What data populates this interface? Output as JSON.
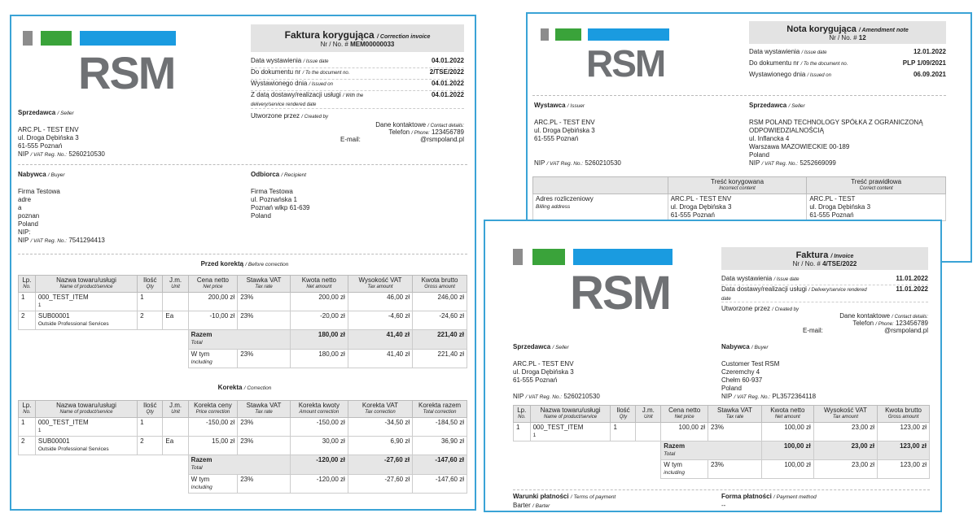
{
  "colors": {
    "gray_bar": "#8c8c8c",
    "green_bar": "#3aa33a",
    "blue_bar": "#1a9be0",
    "frame": "#3aa3d6",
    "logo": "#6f7174"
  },
  "logo": "RSM",
  "doc1": {
    "title": "Faktura korygująca",
    "title_en": "/ Correction invoice",
    "nr_label": "Nr / No. #",
    "nr": "MEM00000033",
    "meta": [
      {
        "label": "Data wystawienia",
        "label_en": "/ Issue date",
        "value": "04.01.2022"
      },
      {
        "label": "Do dokumentu nr",
        "label_en": "/ To the document no.",
        "value": "2/TSE/2022"
      },
      {
        "label": "Wystawionego dnia",
        "label_en": "/ Issued on",
        "value": "04.01.2022"
      },
      {
        "label": "Z datą dostawy/realizacji usługi",
        "label_en": "/ With the delivery/service rendered date",
        "value": "04.01.2022"
      }
    ],
    "created_by": "Utworzone przez",
    "created_by_en": "/ Created by",
    "contact_label": "Dane kontaktowe",
    "contact_label_en": "/ Contact details:",
    "phone_label": "Telefon",
    "phone_label_en": "/ Phone:",
    "phone": "123456789",
    "email_label": "E-mail:",
    "email": "@rsmpoland.pl",
    "seller_label": "Sprzedawca",
    "seller_label_en": "/ Seller",
    "seller": [
      "ARC.PL - TEST ENV",
      "ul. Droga Dębińska 3",
      "61-555 Poznań"
    ],
    "seller_nip_label": "NIP",
    "seller_nip_label_en": "/ VAT Reg. No.:",
    "seller_nip": "5260210530",
    "buyer_label": "Nabywca",
    "buyer_label_en": "/ Buyer",
    "buyer": [
      "Firma Testowa",
      "adre",
      "a",
      "poznan",
      "Poland",
      "NIP:"
    ],
    "buyer_nip_label": "NIP",
    "buyer_nip_label_en": "/ VAT Reg. No.:",
    "buyer_nip": "7541294413",
    "recipient_label": "Odbiorca",
    "recipient_label_en": "/ Recipient",
    "recipient": [
      "Firma Testowa",
      "ul. Poznańska 1",
      "Poznań wlkp 61-639",
      "Poland"
    ],
    "before_label": "Przed korektą",
    "before_label_en": "/ Before correction",
    "before_headers": [
      [
        "Lp.",
        "No."
      ],
      [
        "Nazwa towaru/usługi",
        "Name of product/service"
      ],
      [
        "Ilość",
        "Qty"
      ],
      [
        "J.m.",
        "Unit"
      ],
      [
        "Cena netto",
        "Net price"
      ],
      [
        "Stawka VAT",
        "Tax rate"
      ],
      [
        "Kwota netto",
        "Net amount"
      ],
      [
        "Wysokość VAT",
        "Tax amount"
      ],
      [
        "Kwota brutto",
        "Gross amount"
      ]
    ],
    "before_rows": [
      [
        "1",
        "000_TEST_ITEM",
        "1",
        "1",
        "",
        "200,00 zł",
        "23%",
        "200,00 zł",
        "46,00 zł",
        "246,00 zł"
      ],
      [
        "2",
        "SUB00001",
        "Outside Professional Services",
        "2",
        "Ea",
        "-10,00 zł",
        "23%",
        "-20,00 zł",
        "-4,60 zł",
        "-24,60 zł"
      ]
    ],
    "before_total": {
      "label": "Razem",
      "label_en": "Total",
      "net": "180,00 zł",
      "tax": "41,40 zł",
      "gross": "221,40 zł"
    },
    "before_incl": {
      "label": "W tym",
      "label_en": "Including",
      "rate": "23%",
      "net": "180,00 zł",
      "tax": "41,40 zł",
      "gross": "221,40 zł"
    },
    "corr_label": "Korekta",
    "corr_label_en": "/ Correction",
    "corr_headers": [
      [
        "Lp.",
        "No."
      ],
      [
        "Nazwa towaru/usługi",
        "Name of product/service"
      ],
      [
        "Ilość",
        "Qty"
      ],
      [
        "J.m.",
        "Unit"
      ],
      [
        "Korekta ceny",
        "Price correction"
      ],
      [
        "Stawka VAT",
        "Tax rate"
      ],
      [
        "Korekta kwoty",
        "Amount correction"
      ],
      [
        "Korekta VAT",
        "Tax correction"
      ],
      [
        "Korekta razem",
        "Total correction"
      ]
    ],
    "corr_rows": [
      [
        "1",
        "000_TEST_ITEM",
        "1",
        "1",
        "",
        "-150,00 zł",
        "23%",
        "-150,00 zł",
        "-34,50 zł",
        "-184,50 zł"
      ],
      [
        "2",
        "SUB00001",
        "Outside Professional Services",
        "2",
        "Ea",
        "15,00 zł",
        "23%",
        "30,00 zł",
        "6,90 zł",
        "36,90 zł"
      ]
    ],
    "corr_total": {
      "label": "Razem",
      "label_en": "Total",
      "net": "-120,00 zł",
      "tax": "-27,60 zł",
      "gross": "-147,60 zł"
    },
    "corr_incl": {
      "label": "W tym",
      "label_en": "Including",
      "rate": "23%",
      "net": "-120,00 zł",
      "tax": "-27,60 zł",
      "gross": "-147,60 zł"
    }
  },
  "doc2": {
    "title": "Nota korygująca",
    "title_en": "/ Amendment note",
    "nr_label": "Nr / No. #",
    "nr": "12",
    "meta": [
      {
        "label": "Data wystawienia",
        "label_en": "/ Issue date",
        "value": "12.01.2022"
      },
      {
        "label": "Do dokumentu nr",
        "label_en": "/ To the document no.",
        "value": "PLP 1/09/2021"
      },
      {
        "label": "Wystawionego dnia",
        "label_en": "/ Issued on",
        "value": "06.09.2021"
      }
    ],
    "issuer_label": "Wystawca",
    "issuer_label_en": "/ Issuer",
    "issuer": [
      "ARC.PL - TEST ENV",
      "ul. Droga Dębińska 3",
      "61-555 Poznań"
    ],
    "issuer_nip_label": "NIP",
    "issuer_nip_label_en": "/ VAT Reg. No.:",
    "issuer_nip": "5260210530",
    "seller_label": "Sprzedawca",
    "seller_label_en": "/ Seller",
    "seller": [
      "RSM POLAND TECHNOLOGY SPÓŁKA Z OGRANICZONĄ",
      "ODPOWIEDZIALNOŚCIĄ",
      "ul. Inflancka 4",
      "Warszawa MAZOWIECKIE 00-189",
      "Poland"
    ],
    "seller_nip_label": "NIP",
    "seller_nip_label_en": "/ VAT Reg. No.:",
    "seller_nip": "5252669099",
    "col_incorrect": "Treść korygowana",
    "col_incorrect_en": "Incorrect content",
    "col_correct": "Treść prawidłowa",
    "col_correct_en": "Correct content",
    "row_label": "Adres rozliczeniowy",
    "row_label_en": "Billing address",
    "incorrect": [
      "ARC.PL - TEST ENV",
      "ul. Droga Dębińska 3",
      "61-555 Poznań"
    ],
    "correct": [
      "ARC.PL - TEST",
      "ul. Droga Dębińska 3",
      "61-555 Poznań"
    ]
  },
  "doc3": {
    "title": "Faktura",
    "title_en": "/ Invoice",
    "nr_label": "Nr / No. #",
    "nr": "4/TSE/2022",
    "meta": [
      {
        "label": "Data wystawienia",
        "label_en": "/ Issue date",
        "value": "11.01.2022"
      },
      {
        "label": "Data dostawy/realizacji usługi",
        "label_en": "/ Delivery/service rendered date",
        "value": "11.01.2022"
      }
    ],
    "created_by": "Utworzone przez",
    "created_by_en": "/ Created by",
    "contact_label": "Dane kontaktowe",
    "contact_label_en": "/ Contact details:",
    "phone_label": "Telefon",
    "phone_label_en": "/ Phone:",
    "phone": "123456789",
    "email_label": "E-mail:",
    "email": "@rsmpoland.pl",
    "seller_label": "Sprzedawca",
    "seller_label_en": "/ Seller",
    "seller": [
      "ARC.PL - TEST ENV",
      "ul. Droga Dębińska 3",
      "61-555 Poznań"
    ],
    "seller_nip_label": "NIP",
    "seller_nip_label_en": "/ VAT Reg. No.:",
    "seller_nip": "5260210530",
    "buyer_label": "Nabywca",
    "buyer_label_en": "/ Buyer",
    "buyer": [
      "Customer Test RSM",
      "Czeremchy 4",
      "Chełm 60-937",
      "Poland"
    ],
    "buyer_nip_label": "NIP",
    "buyer_nip_label_en": "/ VAT Reg. No.:",
    "buyer_nip": "PL3572364118",
    "headers": [
      [
        "Lp.",
        "No."
      ],
      [
        "Nazwa towaru/usługi",
        "Name of product/service"
      ],
      [
        "Ilość",
        "Qty"
      ],
      [
        "J.m.",
        "Unit"
      ],
      [
        "Cena netto",
        "Net price"
      ],
      [
        "Stawka VAT",
        "Tax rate"
      ],
      [
        "Kwota netto",
        "Net amount"
      ],
      [
        "Wysokość VAT",
        "Tax amount"
      ],
      [
        "Kwota brutto",
        "Gross amount"
      ]
    ],
    "rows": [
      [
        "1",
        "000_TEST_ITEM",
        "1",
        "1",
        "",
        "100,00 zł",
        "23%",
        "100,00 zł",
        "23,00 zł",
        "123,00 zł"
      ]
    ],
    "total": {
      "label": "Razem",
      "label_en": "Total",
      "net": "100,00 zł",
      "tax": "23,00 zł",
      "gross": "123,00 zł"
    },
    "incl": {
      "label": "W tym",
      "label_en": "including",
      "rate": "23%",
      "net": "100,00 zł",
      "tax": "23,00 zł",
      "gross": "123,00 zł"
    },
    "terms_label": "Warunki płatności",
    "terms_label_en": "/ Terms of payment",
    "terms": "Barter",
    "terms_en": "/ Barter",
    "form_label": "Forma płatności",
    "form_label_en": "/ Payment method",
    "form": "--"
  }
}
